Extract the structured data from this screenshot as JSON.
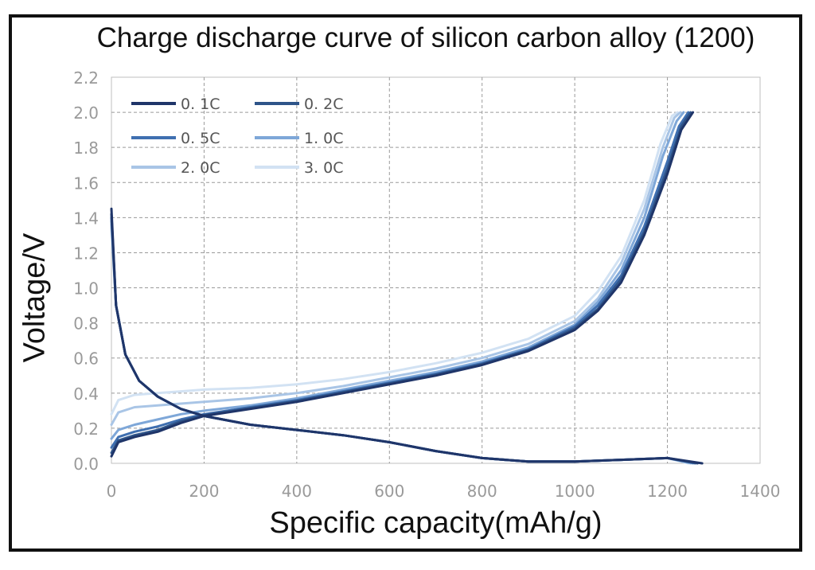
{
  "chart_data": {
    "type": "line",
    "title": "Charge discharge curve of silicon carbon alloy (1200)",
    "xlabel": "Specific capacity(mAh/g)",
    "ylabel": "Voltage/V",
    "xlim": [
      0,
      1400
    ],
    "ylim": [
      0,
      2.2
    ],
    "xticks": [
      "0",
      "200",
      "400",
      "600",
      "800",
      "1000",
      "1200",
      "1400"
    ],
    "yticks": [
      "0.0",
      "0.2",
      "0.4",
      "0.6",
      "0.8",
      "1.0",
      "1.2",
      "1.4",
      "1.6",
      "1.8",
      "2.0",
      "2.2"
    ],
    "grid": true,
    "legend_position": "top-left",
    "series": [
      {
        "name": "0. 1C",
        "color": "#1f3569",
        "charge": [
          [
            0,
            0.04
          ],
          [
            15,
            0.12
          ],
          [
            50,
            0.15
          ],
          [
            100,
            0.18
          ],
          [
            150,
            0.23
          ],
          [
            200,
            0.27
          ],
          [
            300,
            0.31
          ],
          [
            400,
            0.35
          ],
          [
            500,
            0.4
          ],
          [
            600,
            0.45
          ],
          [
            700,
            0.5
          ],
          [
            800,
            0.56
          ],
          [
            900,
            0.64
          ],
          [
            1000,
            0.76
          ],
          [
            1050,
            0.87
          ],
          [
            1100,
            1.03
          ],
          [
            1150,
            1.3
          ],
          [
            1200,
            1.65
          ],
          [
            1230,
            1.9
          ],
          [
            1255,
            2.0
          ]
        ],
        "discharge": [
          [
            0,
            1.45
          ],
          [
            10,
            0.9
          ],
          [
            30,
            0.62
          ],
          [
            60,
            0.47
          ],
          [
            100,
            0.38
          ],
          [
            150,
            0.31
          ],
          [
            200,
            0.27
          ],
          [
            300,
            0.22
          ],
          [
            400,
            0.19
          ],
          [
            500,
            0.16
          ],
          [
            600,
            0.12
          ],
          [
            700,
            0.07
          ],
          [
            800,
            0.03
          ],
          [
            900,
            0.01
          ],
          [
            1000,
            0.01
          ],
          [
            1100,
            0.02
          ],
          [
            1200,
            0.03
          ],
          [
            1275,
            0.0
          ]
        ]
      },
      {
        "name": "0. 2C",
        "color": "#2e5489",
        "charge": [
          [
            0,
            0.06
          ],
          [
            15,
            0.13
          ],
          [
            50,
            0.16
          ],
          [
            100,
            0.19
          ],
          [
            150,
            0.24
          ],
          [
            200,
            0.275
          ],
          [
            300,
            0.315
          ],
          [
            400,
            0.355
          ],
          [
            500,
            0.405
          ],
          [
            600,
            0.455
          ],
          [
            700,
            0.505
          ],
          [
            800,
            0.565
          ],
          [
            900,
            0.645
          ],
          [
            1000,
            0.77
          ],
          [
            1050,
            0.88
          ],
          [
            1100,
            1.05
          ],
          [
            1150,
            1.32
          ],
          [
            1200,
            1.68
          ],
          [
            1230,
            1.92
          ],
          [
            1250,
            2.0
          ]
        ],
        "discharge": [
          [
            0,
            1.42
          ],
          [
            10,
            0.9
          ],
          [
            30,
            0.62
          ],
          [
            60,
            0.47
          ],
          [
            100,
            0.38
          ],
          [
            150,
            0.31
          ],
          [
            200,
            0.27
          ],
          [
            300,
            0.22
          ],
          [
            400,
            0.19
          ],
          [
            500,
            0.16
          ],
          [
            600,
            0.12
          ],
          [
            700,
            0.07
          ],
          [
            800,
            0.03
          ],
          [
            900,
            0.01
          ],
          [
            1000,
            0.01
          ],
          [
            1100,
            0.02
          ],
          [
            1200,
            0.03
          ],
          [
            1265,
            0.0
          ]
        ]
      },
      {
        "name": "0. 5C",
        "color": "#3f6fb0",
        "charge": [
          [
            0,
            0.09
          ],
          [
            15,
            0.15
          ],
          [
            50,
            0.18
          ],
          [
            100,
            0.21
          ],
          [
            150,
            0.25
          ],
          [
            200,
            0.28
          ],
          [
            300,
            0.32
          ],
          [
            400,
            0.36
          ],
          [
            500,
            0.41
          ],
          [
            600,
            0.46
          ],
          [
            700,
            0.51
          ],
          [
            800,
            0.57
          ],
          [
            900,
            0.65
          ],
          [
            1000,
            0.78
          ],
          [
            1050,
            0.9
          ],
          [
            1100,
            1.07
          ],
          [
            1150,
            1.35
          ],
          [
            1200,
            1.72
          ],
          [
            1225,
            1.92
          ],
          [
            1245,
            2.0
          ]
        ],
        "discharge": [
          [
            0,
            1.4
          ],
          [
            10,
            0.9
          ],
          [
            30,
            0.62
          ],
          [
            60,
            0.47
          ],
          [
            100,
            0.38
          ],
          [
            150,
            0.31
          ],
          [
            200,
            0.27
          ],
          [
            300,
            0.22
          ],
          [
            400,
            0.19
          ],
          [
            500,
            0.16
          ],
          [
            600,
            0.12
          ],
          [
            700,
            0.07
          ],
          [
            800,
            0.03
          ],
          [
            900,
            0.01
          ],
          [
            1000,
            0.01
          ],
          [
            1100,
            0.02
          ],
          [
            1200,
            0.03
          ],
          [
            1260,
            0.0
          ]
        ]
      },
      {
        "name": "1. 0C",
        "color": "#7ea7d8",
        "charge": [
          [
            0,
            0.14
          ],
          [
            15,
            0.19
          ],
          [
            50,
            0.22
          ],
          [
            100,
            0.25
          ],
          [
            150,
            0.28
          ],
          [
            200,
            0.3
          ],
          [
            300,
            0.33
          ],
          [
            400,
            0.37
          ],
          [
            500,
            0.42
          ],
          [
            600,
            0.47
          ],
          [
            700,
            0.52
          ],
          [
            800,
            0.58
          ],
          [
            900,
            0.66
          ],
          [
            1000,
            0.79
          ],
          [
            1050,
            0.92
          ],
          [
            1100,
            1.1
          ],
          [
            1150,
            1.4
          ],
          [
            1190,
            1.75
          ],
          [
            1220,
            1.95
          ],
          [
            1235,
            2.0
          ]
        ],
        "discharge": [
          [
            0,
            1.38
          ],
          [
            10,
            0.9
          ],
          [
            30,
            0.62
          ],
          [
            60,
            0.47
          ],
          [
            100,
            0.38
          ],
          [
            150,
            0.31
          ],
          [
            200,
            0.27
          ],
          [
            300,
            0.22
          ],
          [
            400,
            0.19
          ],
          [
            500,
            0.16
          ],
          [
            600,
            0.12
          ],
          [
            700,
            0.07
          ],
          [
            800,
            0.03
          ],
          [
            900,
            0.01
          ],
          [
            1000,
            0.01
          ],
          [
            1100,
            0.02
          ],
          [
            1200,
            0.03
          ],
          [
            1255,
            0.0
          ]
        ]
      },
      {
        "name": "2. 0C",
        "color": "#a9c5e6",
        "charge": [
          [
            0,
            0.22
          ],
          [
            15,
            0.29
          ],
          [
            50,
            0.32
          ],
          [
            100,
            0.33
          ],
          [
            150,
            0.34
          ],
          [
            200,
            0.35
          ],
          [
            300,
            0.37
          ],
          [
            400,
            0.4
          ],
          [
            500,
            0.44
          ],
          [
            600,
            0.49
          ],
          [
            700,
            0.54
          ],
          [
            800,
            0.6
          ],
          [
            900,
            0.68
          ],
          [
            1000,
            0.81
          ],
          [
            1050,
            0.94
          ],
          [
            1100,
            1.14
          ],
          [
            1150,
            1.45
          ],
          [
            1190,
            1.8
          ],
          [
            1215,
            1.97
          ],
          [
            1228,
            2.0
          ]
        ],
        "discharge": [
          [
            0,
            1.36
          ],
          [
            10,
            0.9
          ],
          [
            30,
            0.62
          ],
          [
            60,
            0.47
          ],
          [
            100,
            0.38
          ],
          [
            150,
            0.31
          ],
          [
            200,
            0.27
          ],
          [
            300,
            0.22
          ],
          [
            400,
            0.19
          ],
          [
            500,
            0.16
          ],
          [
            600,
            0.12
          ],
          [
            700,
            0.07
          ],
          [
            800,
            0.03
          ],
          [
            900,
            0.01
          ],
          [
            1000,
            0.01
          ],
          [
            1100,
            0.02
          ],
          [
            1200,
            0.03
          ],
          [
            1250,
            0.0
          ]
        ]
      },
      {
        "name": "3. 0C",
        "color": "#d2e2f3",
        "charge": [
          [
            0,
            0.28
          ],
          [
            15,
            0.36
          ],
          [
            50,
            0.39
          ],
          [
            100,
            0.4
          ],
          [
            150,
            0.41
          ],
          [
            200,
            0.42
          ],
          [
            300,
            0.43
          ],
          [
            400,
            0.45
          ],
          [
            500,
            0.48
          ],
          [
            600,
            0.52
          ],
          [
            700,
            0.57
          ],
          [
            800,
            0.63
          ],
          [
            900,
            0.71
          ],
          [
            1000,
            0.84
          ],
          [
            1050,
            0.98
          ],
          [
            1100,
            1.18
          ],
          [
            1150,
            1.5
          ],
          [
            1185,
            1.82
          ],
          [
            1210,
            1.98
          ],
          [
            1222,
            2.0
          ]
        ],
        "discharge": [
          [
            0,
            1.34
          ],
          [
            10,
            0.9
          ],
          [
            30,
            0.62
          ],
          [
            60,
            0.47
          ],
          [
            100,
            0.38
          ],
          [
            150,
            0.31
          ],
          [
            200,
            0.27
          ],
          [
            300,
            0.22
          ],
          [
            400,
            0.19
          ],
          [
            500,
            0.16
          ],
          [
            600,
            0.12
          ],
          [
            700,
            0.07
          ],
          [
            800,
            0.03
          ],
          [
            900,
            0.01
          ],
          [
            1000,
            0.01
          ],
          [
            1100,
            0.02
          ],
          [
            1200,
            0.03
          ],
          [
            1245,
            0.0
          ]
        ]
      }
    ]
  }
}
